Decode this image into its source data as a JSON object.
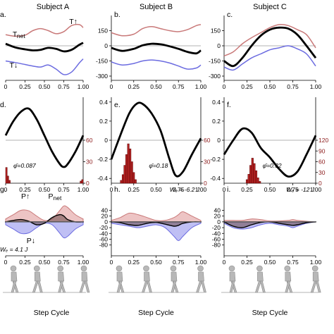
{
  "columns": [
    {
      "title": "Subject A",
      "torque": {
        "panel_label": "a.",
        "x": [
          0,
          0.25,
          0.5,
          0.75,
          1.0
        ],
        "yticks": [
          -300,
          -150,
          0,
          150,
          300
        ],
        "ylim": [
          -300,
          300
        ],
        "yticks_visible": [],
        "xticks": [
          "0",
          "0.25",
          "0.50",
          "0.75",
          "1.00"
        ],
        "series": [
          {
            "name": "T↑",
            "color": "#c97979",
            "x": [
              0,
              0.12,
              0.25,
              0.35,
              0.45,
              0.55,
              0.65,
              0.75,
              0.85,
              0.95,
              1.0
            ],
            "y": [
              110,
              95,
              105,
              150,
              170,
              150,
              120,
              140,
              200,
              210,
              180
            ]
          },
          {
            "name": "T_net",
            "color": "#000000",
            "x": [
              0,
              0.12,
              0.25,
              0.35,
              0.45,
              0.55,
              0.65,
              0.75,
              0.85,
              0.95,
              1.0
            ],
            "y": [
              20,
              -15,
              -35,
              -45,
              -40,
              -20,
              -30,
              -55,
              -40,
              10,
              30
            ]
          },
          {
            "name": "T↓",
            "color": "#6b6be0",
            "x": [
              0,
              0.12,
              0.25,
              0.35,
              0.45,
              0.55,
              0.65,
              0.75,
              0.85,
              0.95,
              1.0
            ],
            "y": [
              -150,
              -165,
              -185,
              -200,
              -210,
              -190,
              -230,
              -285,
              -260,
              -170,
              -130
            ]
          }
        ],
        "labels": [
          "T↑",
          "T_net",
          "T↓"
        ]
      },
      "phase": {
        "panel_label": "d.",
        "xticks": [
          "0",
          "0.25",
          "0.50",
          "0.75",
          "1.00"
        ],
        "ylim": [
          -0.45,
          0.45
        ],
        "yticks": [],
        "rticks": [
          "60",
          "30",
          "0"
        ],
        "rlim": [
          0,
          60
        ],
        "curve_x": [
          0,
          0.1,
          0.2,
          0.3,
          0.4,
          0.5,
          0.6,
          0.7,
          0.75,
          0.8,
          0.9,
          1.0
        ],
        "curve_y": [
          0.05,
          0.2,
          0.3,
          0.33,
          0.22,
          0.05,
          -0.12,
          -0.25,
          -0.28,
          -0.25,
          -0.12,
          0.05
        ],
        "hist_bins": [
          0.0,
          0.02,
          0.04,
          0.96,
          0.98
        ],
        "hist_counts": [
          22,
          10,
          4,
          3,
          5
        ],
        "phi_bar": "φ̄=0.087"
      },
      "power": {
        "panel_label": "g.",
        "xticks": [
          "0",
          "0.25",
          "0.50",
          "0.75",
          "1.00"
        ],
        "ylim": [
          -80,
          80
        ],
        "yticks": [],
        "x": [
          0,
          0.1,
          0.2,
          0.3,
          0.4,
          0.5,
          0.6,
          0.7,
          0.75,
          0.8,
          0.9,
          1.0
        ],
        "p_up": [
          10,
          25,
          40,
          38,
          20,
          5,
          10,
          40,
          55,
          50,
          25,
          10
        ],
        "p_down": [
          -10,
          -25,
          -40,
          -38,
          -20,
          -5,
          -10,
          -40,
          -55,
          -50,
          -25,
          -10
        ],
        "p_net": [
          0,
          5,
          8,
          2,
          -10,
          -5,
          15,
          25,
          20,
          8,
          0,
          0
        ],
        "labels": [
          "P↑",
          "P_net",
          "P↓"
        ],
        "work": "Wₑ = 4.1 J"
      }
    },
    {
      "title": "Subject B",
      "torque": {
        "panel_label": "b.",
        "yticks": [
          -300,
          -150,
          0,
          150
        ],
        "ylim": [
          -300,
          300
        ],
        "yticks_visible": [
          "150",
          "0",
          "-150",
          "-300"
        ],
        "xticks": [
          "0",
          "0.25",
          "0.50",
          "0.75",
          "1.00"
        ],
        "series": [
          {
            "name": "T↑",
            "color": "#c97979",
            "x": [
              0,
              0.12,
              0.25,
              0.35,
              0.45,
              0.55,
              0.65,
              0.75,
              0.85,
              0.95,
              1.0
            ],
            "y": [
              130,
              100,
              115,
              170,
              190,
              170,
              150,
              140,
              160,
              200,
              210
            ]
          },
          {
            "name": "T_net",
            "color": "#000000",
            "x": [
              0,
              0.12,
              0.25,
              0.35,
              0.45,
              0.55,
              0.65,
              0.75,
              0.85,
              0.95,
              1.0
            ],
            "y": [
              -20,
              -50,
              -30,
              5,
              20,
              15,
              -5,
              -30,
              -60,
              -75,
              -45
            ]
          },
          {
            "name": "T↓",
            "color": "#6b6be0",
            "x": [
              0,
              0.12,
              0.25,
              0.35,
              0.45,
              0.55,
              0.65,
              0.75,
              0.85,
              0.95,
              1.0
            ],
            "y": [
              -160,
              -190,
              -175,
              -150,
              -140,
              -150,
              -170,
              -200,
              -230,
              -220,
              -190
            ]
          }
        ]
      },
      "phase": {
        "panel_label": "e.",
        "xticks": [
          "0",
          "0.25",
          "0.50",
          "0.75",
          "1.00"
        ],
        "ylim": [
          -0.45,
          0.45
        ],
        "yticks": [
          "0.4",
          "0.2",
          "0",
          "-0.2",
          "-0.4"
        ],
        "rticks": [
          "60",
          "30",
          "0"
        ],
        "rlim": [
          0,
          60
        ],
        "curve_x": [
          0,
          0.1,
          0.2,
          0.28,
          0.35,
          0.45,
          0.55,
          0.65,
          0.72,
          0.8,
          0.9,
          1.0
        ],
        "curve_y": [
          -0.2,
          0.05,
          0.28,
          0.38,
          0.38,
          0.28,
          0.1,
          -0.2,
          -0.37,
          -0.33,
          -0.15,
          0.02
        ],
        "hist_bins": [
          0.1,
          0.12,
          0.14,
          0.16,
          0.18,
          0.2,
          0.22,
          0.24,
          0.26
        ],
        "hist_counts": [
          4,
          12,
          25,
          40,
          55,
          48,
          30,
          15,
          5
        ],
        "phi_bar": "φ̄=0.18"
      },
      "power": {
        "panel_label": "h.",
        "xticks": [
          "0",
          "0.25",
          "0.50",
          "0.75",
          "1.00"
        ],
        "ylim": [
          -80,
          80
        ],
        "yticks": [
          "40",
          "20",
          "0",
          "-20",
          "-40",
          "-60",
          "-80"
        ],
        "x": [
          0,
          0.1,
          0.2,
          0.3,
          0.4,
          0.5,
          0.6,
          0.7,
          0.75,
          0.8,
          0.9,
          1.0
        ],
        "p_up": [
          5,
          15,
          30,
          25,
          15,
          5,
          5,
          15,
          25,
          35,
          20,
          5
        ],
        "p_down": [
          -5,
          -10,
          -15,
          -20,
          -15,
          -10,
          -20,
          -50,
          -65,
          -50,
          -20,
          -5
        ],
        "p_net": [
          0,
          -3,
          -10,
          -12,
          -5,
          -2,
          -8,
          -15,
          -12,
          -5,
          0,
          0
        ],
        "work": "Wₑ = -6.2 J"
      }
    },
    {
      "title": "Subject C",
      "torque": {
        "panel_label": "c.",
        "yticks": [
          -300,
          -150,
          0,
          150
        ],
        "ylim": [
          -300,
          300
        ],
        "yticks_visible": [
          "150",
          "0",
          "-150",
          "-300"
        ],
        "xticks": [
          "0",
          "0.25",
          "0.50",
          "0.75",
          "1.00"
        ],
        "series": [
          {
            "name": "T↑",
            "color": "#c97979",
            "x": [
              0,
              0.1,
              0.2,
              0.3,
              0.4,
              0.5,
              0.6,
              0.7,
              0.8,
              0.9,
              1.0
            ],
            "y": [
              -100,
              -60,
              20,
              80,
              130,
              180,
              210,
              200,
              160,
              110,
              -20
            ]
          },
          {
            "name": "T_net",
            "color": "#000000",
            "x": [
              0,
              0.1,
              0.2,
              0.3,
              0.4,
              0.5,
              0.6,
              0.7,
              0.8,
              0.9,
              1.0
            ],
            "y": [
              -150,
              -200,
              -120,
              0,
              100,
              160,
              180,
              170,
              110,
              0,
              -120
            ]
          },
          {
            "name": "T↓",
            "color": "#6b6be0",
            "x": [
              0,
              0.1,
              0.2,
              0.3,
              0.4,
              0.5,
              0.6,
              0.7,
              0.8,
              0.9,
              1.0
            ],
            "y": [
              -210,
              -240,
              -180,
              -120,
              -80,
              -40,
              -20,
              0,
              -30,
              -80,
              -200
            ]
          }
        ]
      },
      "phase": {
        "panel_label": "f.",
        "xticks": [
          "0",
          "0.25",
          "0.50",
          "0.75",
          "1.00"
        ],
        "ylim": [
          -0.45,
          0.45
        ],
        "yticks": [
          "0.4",
          "0.2",
          "0",
          "-0.2",
          "-0.4"
        ],
        "rticks": [
          "120",
          "90",
          "60",
          "30",
          "0"
        ],
        "rlim": [
          0,
          120
        ],
        "curve_x": [
          0,
          0.1,
          0.2,
          0.3,
          0.4,
          0.5,
          0.6,
          0.7,
          0.8,
          0.9,
          1.0
        ],
        "curve_y": [
          -0.15,
          0.0,
          0.12,
          0.08,
          -0.08,
          -0.18,
          -0.3,
          -0.38,
          -0.33,
          -0.15,
          0.05
        ],
        "hist_bins": [
          0.24,
          0.26,
          0.28,
          0.3,
          0.32,
          0.34,
          0.36,
          0.38
        ],
        "hist_counts": [
          10,
          25,
          50,
          70,
          55,
          35,
          15,
          5
        ],
        "phi_bar": "φ̄=0.32"
      },
      "power": {
        "panel_label": "i.",
        "xticks": [
          "0",
          "0.25",
          "0.50",
          "0.75",
          "1.00"
        ],
        "ylim": [
          -80,
          80
        ],
        "yticks": [
          "40",
          "20",
          "0",
          "-20",
          "-40",
          "-60",
          "-80"
        ],
        "x": [
          0,
          0.1,
          0.2,
          0.3,
          0.4,
          0.5,
          0.6,
          0.7,
          0.75,
          0.8,
          0.9,
          1.0
        ],
        "p_up": [
          5,
          5,
          5,
          10,
          8,
          3,
          3,
          5,
          8,
          5,
          2,
          0
        ],
        "p_down": [
          -5,
          -20,
          -25,
          -20,
          -10,
          -5,
          -10,
          -15,
          -20,
          -15,
          -5,
          0
        ],
        "p_net": [
          0,
          -15,
          -20,
          -10,
          -2,
          0,
          -5,
          -10,
          -12,
          -10,
          -3,
          0
        ],
        "work": "Wₑ = -12 J"
      }
    }
  ],
  "xlabel": "Step Cycle",
  "colors": {
    "upper": "#c97979",
    "upper_fill": "#e7b0b0",
    "lower": "#6b6be0",
    "lower_fill": "#a9a9f0",
    "net": "#000000",
    "hist_fill": "#b22222",
    "hist_edge": "#5a0000"
  },
  "icons": [
    "walking-figure-icon"
  ]
}
